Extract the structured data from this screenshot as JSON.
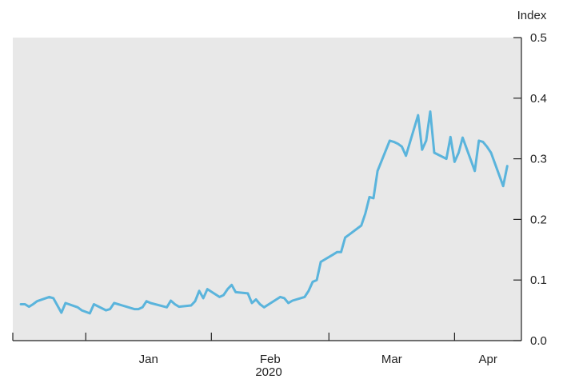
{
  "chart_data": {
    "type": "line",
    "title": "",
    "ylabel": "Index",
    "xlabel": "2020",
    "ylim": [
      0.0,
      0.5
    ],
    "y_ticks": [
      "0.0",
      "0.1",
      "0.2",
      "0.3",
      "0.4",
      "0.5"
    ],
    "y_axis_side": "right",
    "x_tick_labels": [
      "Jan",
      "Feb",
      "Mar",
      "Apr"
    ],
    "grid": false,
    "legend": "none",
    "colors": {
      "line": "#5ab4dc",
      "plot_background": "#e8e8e8",
      "axis": "#222222"
    },
    "series": [
      {
        "x": [
          "2019-12-16",
          "2019-12-17",
          "2019-12-18",
          "2019-12-19",
          "2019-12-20",
          "2019-12-23",
          "2019-12-24",
          "2019-12-26",
          "2019-12-27",
          "2019-12-30",
          "2019-12-31",
          "2020-01-02",
          "2020-01-03",
          "2020-01-06",
          "2020-01-07",
          "2020-01-08",
          "2020-01-09",
          "2020-01-10",
          "2020-01-13",
          "2020-01-14",
          "2020-01-15",
          "2020-01-16",
          "2020-01-17",
          "2020-01-21",
          "2020-01-22",
          "2020-01-23",
          "2020-01-24",
          "2020-01-27",
          "2020-01-28",
          "2020-01-29",
          "2020-01-30",
          "2020-01-31",
          "2020-02-03",
          "2020-02-04",
          "2020-02-05",
          "2020-02-06",
          "2020-02-07",
          "2020-02-10",
          "2020-02-11",
          "2020-02-12",
          "2020-02-13",
          "2020-02-14",
          "2020-02-18",
          "2020-02-19",
          "2020-02-20",
          "2020-02-21",
          "2020-02-24",
          "2020-02-25",
          "2020-02-26",
          "2020-02-27",
          "2020-02-28",
          "2020-03-02",
          "2020-03-03",
          "2020-03-04",
          "2020-03-05",
          "2020-03-06",
          "2020-03-09",
          "2020-03-10",
          "2020-03-11",
          "2020-03-12",
          "2020-03-13",
          "2020-03-16",
          "2020-03-17",
          "2020-03-18",
          "2020-03-19",
          "2020-03-20",
          "2020-03-23",
          "2020-03-24",
          "2020-03-25",
          "2020-03-26",
          "2020-03-27",
          "2020-03-30",
          "2020-03-31",
          "2020-04-01",
          "2020-04-02",
          "2020-04-03",
          "2020-04-06",
          "2020-04-07",
          "2020-04-08",
          "2020-04-09",
          "2020-04-10",
          "2020-04-13",
          "2020-04-14"
        ],
        "y": [
          0.06,
          0.06,
          0.056,
          0.06,
          0.065,
          0.072,
          0.07,
          0.046,
          0.062,
          0.055,
          0.05,
          0.045,
          0.06,
          0.05,
          0.052,
          0.062,
          0.06,
          0.058,
          0.052,
          0.052,
          0.055,
          0.065,
          0.062,
          0.055,
          0.066,
          0.06,
          0.056,
          0.058,
          0.065,
          0.082,
          0.07,
          0.085,
          0.072,
          0.075,
          0.085,
          0.092,
          0.08,
          0.078,
          0.062,
          0.068,
          0.06,
          0.055,
          0.072,
          0.07,
          0.062,
          0.066,
          0.072,
          0.082,
          0.097,
          0.1,
          0.13,
          0.142,
          0.146,
          0.146,
          0.17,
          0.175,
          0.19,
          0.21,
          0.237,
          0.235,
          0.28,
          0.33,
          0.328,
          0.325,
          0.32,
          0.305,
          0.372,
          0.315,
          0.33,
          0.378,
          0.31,
          0.3,
          0.336,
          0.295,
          0.31,
          0.335,
          0.28,
          0.33,
          0.328,
          0.32,
          0.31,
          0.255,
          0.288
        ]
      }
    ]
  }
}
